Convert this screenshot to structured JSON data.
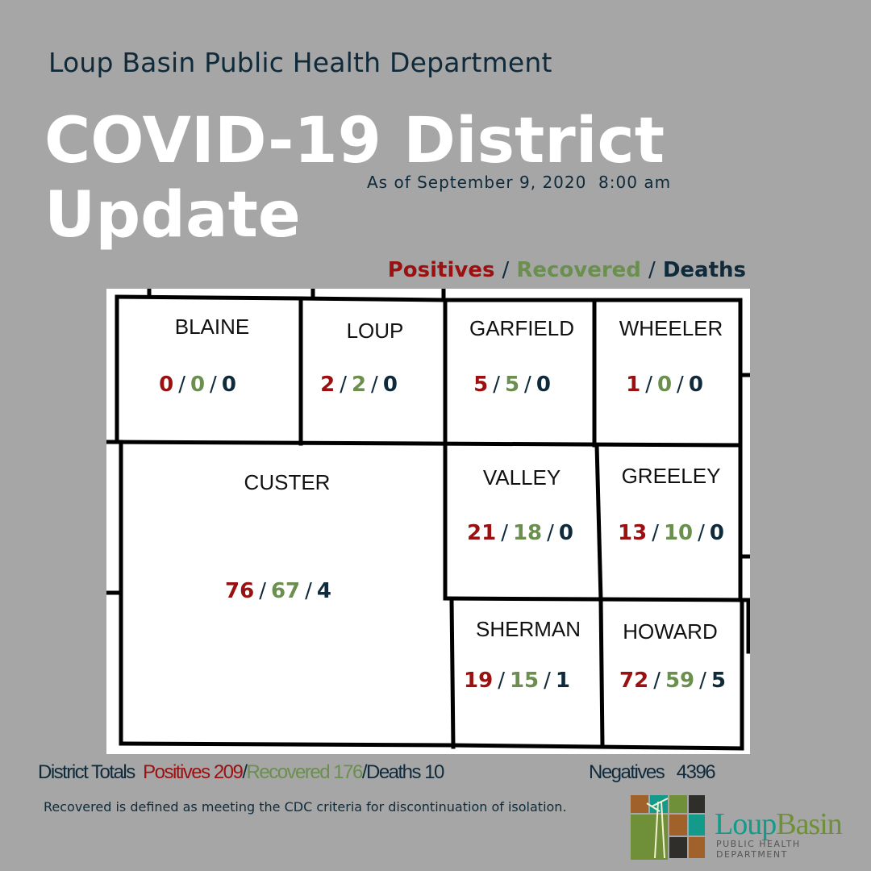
{
  "header": {
    "organization": "Loup Basin Public Health Department",
    "title_line1": "COVID-19 District",
    "title_line2": "Update",
    "as_of": "As of September 9, 2020  8:00 am"
  },
  "legend": {
    "positives": "Positives",
    "recovered": "Recovered",
    "deaths": "Deaths",
    "separator": "/"
  },
  "colors": {
    "positives": "#9b1111",
    "recovered": "#6b8f4e",
    "deaths": "#0f2a3a",
    "background": "#a6a6a6"
  },
  "counties": [
    {
      "name": "BLAINE",
      "positives": "0",
      "recovered": "0",
      "deaths": "0"
    },
    {
      "name": "LOUP",
      "positives": "2",
      "recovered": "2",
      "deaths": "0"
    },
    {
      "name": "GARFIELD",
      "positives": "5",
      "recovered": "5",
      "deaths": "0"
    },
    {
      "name": "WHEELER",
      "positives": "1",
      "recovered": "0",
      "deaths": "0"
    },
    {
      "name": "CUSTER",
      "positives": "76",
      "recovered": "67",
      "deaths": "4"
    },
    {
      "name": "VALLEY",
      "positives": "21",
      "recovered": "18",
      "deaths": "0"
    },
    {
      "name": "GREELEY",
      "positives": "13",
      "recovered": "10",
      "deaths": "0"
    },
    {
      "name": "SHERMAN",
      "positives": "19",
      "recovered": "15",
      "deaths": "1"
    },
    {
      "name": "HOWARD",
      "positives": "72",
      "recovered": "59",
      "deaths": "5"
    }
  ],
  "totals": {
    "label": "District Totals",
    "positives": "Positives 209",
    "recovered": "Recovered 176",
    "deaths": "Deaths 10",
    "negatives_label": "Negatives",
    "negatives": "4396"
  },
  "note": "Recovered is defined as meeting the CDC criteria for discontinuation of isolation.",
  "logo": {
    "name_part1": "Loup",
    "name_part2": "Basin",
    "subtitle": "PUBLIC HEALTH DEPARTMENT"
  }
}
